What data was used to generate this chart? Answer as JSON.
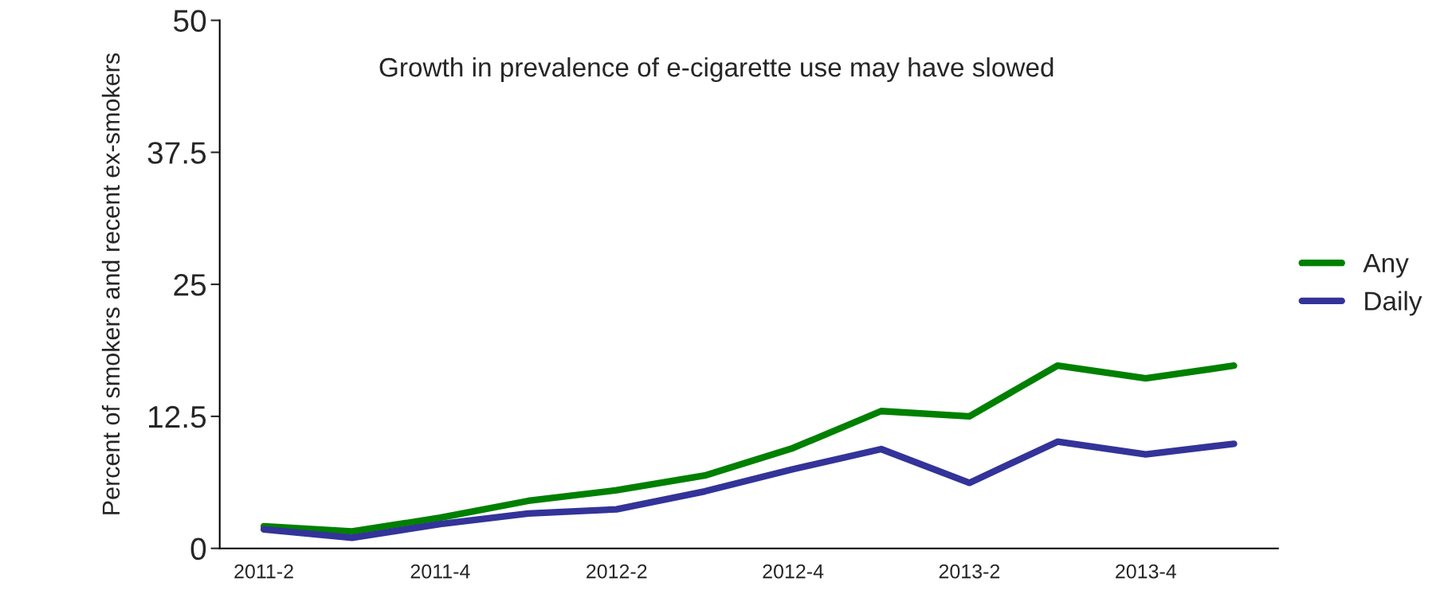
{
  "chart_data": {
    "type": "line",
    "title": "Growth in prevalence of e-cigarette use may have slowed",
    "ylabel": "Percent of smokers and recent ex-smokers",
    "categories": [
      "2011-2",
      null,
      "2011-4",
      null,
      "2012-2",
      null,
      "2012-4",
      null,
      "2013-2",
      null,
      "2013-4",
      null
    ],
    "series": [
      {
        "name": "Any",
        "color": "#008000",
        "values": [
          2.1,
          1.6,
          2.9,
          4.5,
          5.5,
          6.9,
          9.5,
          13.0,
          12.5,
          17.3,
          16.1,
          17.3
        ]
      },
      {
        "name": "Daily",
        "color": "#333399",
        "values": [
          1.8,
          1.0,
          2.3,
          3.3,
          3.7,
          5.4,
          7.5,
          9.4,
          6.2,
          10.1,
          8.9,
          9.9
        ]
      }
    ],
    "ylim": [
      0,
      50
    ],
    "yticks": [
      0,
      12.5,
      25,
      37.5,
      50
    ],
    "grid": false,
    "legend": "right",
    "marker": "none",
    "line_style": "solid"
  }
}
